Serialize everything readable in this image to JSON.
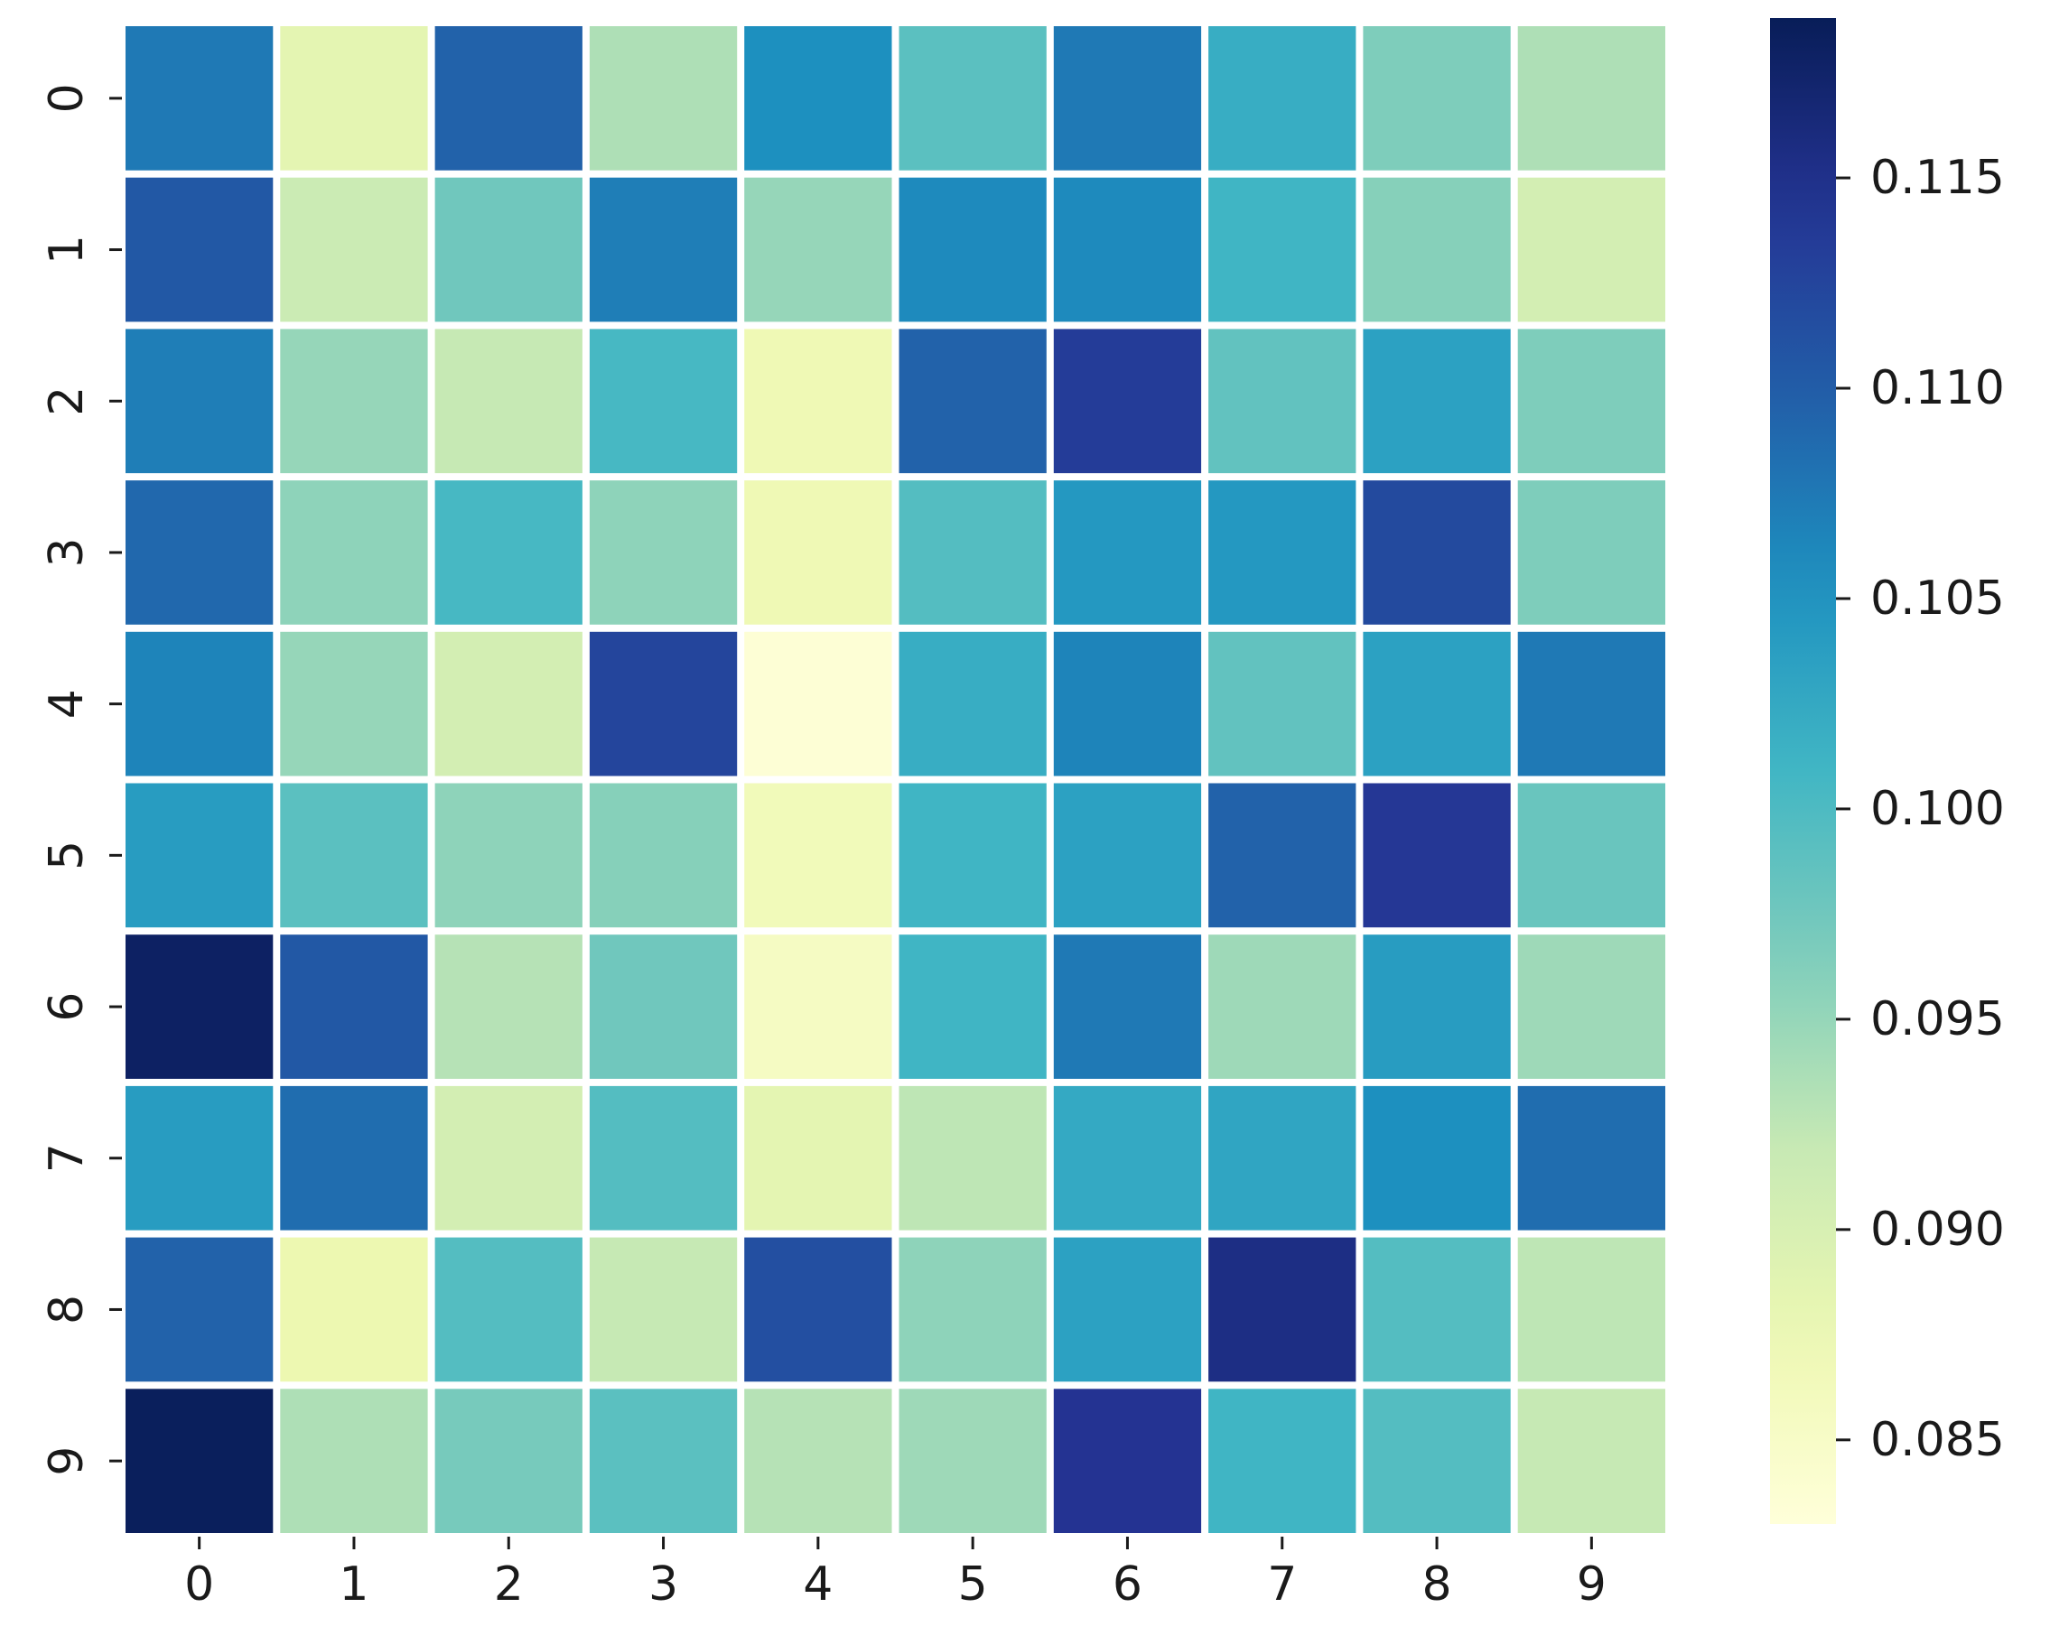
{
  "chart_data": {
    "type": "heatmap",
    "title": "",
    "xlabel": "",
    "ylabel": "",
    "x_categories": [
      "0",
      "1",
      "2",
      "3",
      "4",
      "5",
      "6",
      "7",
      "8",
      "9"
    ],
    "y_categories": [
      "0",
      "1",
      "2",
      "3",
      "4",
      "5",
      "6",
      "7",
      "8",
      "9"
    ],
    "values": [
      [
        0.1075,
        0.0885,
        0.1095,
        0.0935,
        0.1055,
        0.099,
        0.1075,
        0.102,
        0.0965,
        0.0935
      ],
      [
        0.1105,
        0.0915,
        0.0975,
        0.107,
        0.095,
        0.106,
        0.106,
        0.101,
        0.096,
        0.0905
      ],
      [
        0.107,
        0.095,
        0.092,
        0.1005,
        0.087,
        0.1095,
        0.1135,
        0.0985,
        0.1035,
        0.0965
      ],
      [
        0.109,
        0.0955,
        0.1005,
        0.0955,
        0.087,
        0.0995,
        0.1045,
        0.1045,
        0.112,
        0.0965
      ],
      [
        0.1065,
        0.095,
        0.0905,
        0.1125,
        0.0835,
        0.102,
        0.1065,
        0.0985,
        0.1035,
        0.1075
      ],
      [
        0.104,
        0.099,
        0.0955,
        0.096,
        0.0865,
        0.101,
        0.1035,
        0.1095,
        0.114,
        0.098
      ],
      [
        0.118,
        0.1105,
        0.093,
        0.0975,
        0.0855,
        0.101,
        0.1075,
        0.0945,
        0.104,
        0.0945
      ],
      [
        0.104,
        0.1085,
        0.0905,
        0.0995,
        0.0885,
        0.0925,
        0.1025,
        0.103,
        0.1055,
        0.1085
      ],
      [
        0.1095,
        0.0875,
        0.0995,
        0.092,
        0.1115,
        0.0955,
        0.1035,
        0.1155,
        0.0995,
        0.0925
      ],
      [
        0.1185,
        0.0935,
        0.097,
        0.099,
        0.093,
        0.0945,
        0.1145,
        0.101,
        0.0995,
        0.092
      ]
    ],
    "zlim": [
      0.083,
      0.1188
    ],
    "colorbar_ticks": [
      "0.085",
      "0.090",
      "0.095",
      "0.100",
      "0.105",
      "0.110",
      "0.115"
    ],
    "colormap": "YlGnBu",
    "grid": false,
    "legend": "colorbar-right"
  }
}
